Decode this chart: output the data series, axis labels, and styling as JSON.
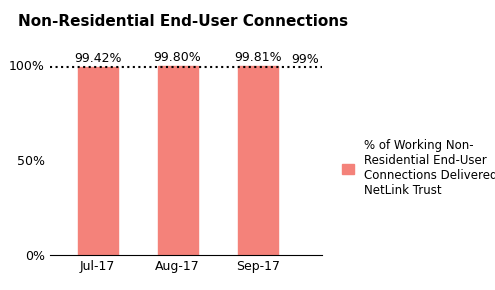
{
  "title": "Non-Residential End-User Connections",
  "categories": [
    "Jul-17",
    "Aug-17",
    "Sep-17"
  ],
  "values": [
    99.42,
    99.8,
    99.81
  ],
  "bar_labels": [
    "99.42%",
    "99.80%",
    "99.81%"
  ],
  "bar_color": "#F4827A",
  "target_line": 99,
  "target_label": "99%",
  "ylim_max": 107,
  "yticks": [
    0,
    50,
    100
  ],
  "ytick_labels": [
    "0%",
    "50%",
    "100%"
  ],
  "legend_label": "% of Working Non-\nResidential End-User\nConnections Delivered by\nNetLink Trust",
  "legend_color": "#F4827A",
  "background_color": "#FFFFFF",
  "title_fontsize": 11,
  "label_fontsize": 9,
  "tick_fontsize": 9,
  "legend_fontsize": 8.5
}
